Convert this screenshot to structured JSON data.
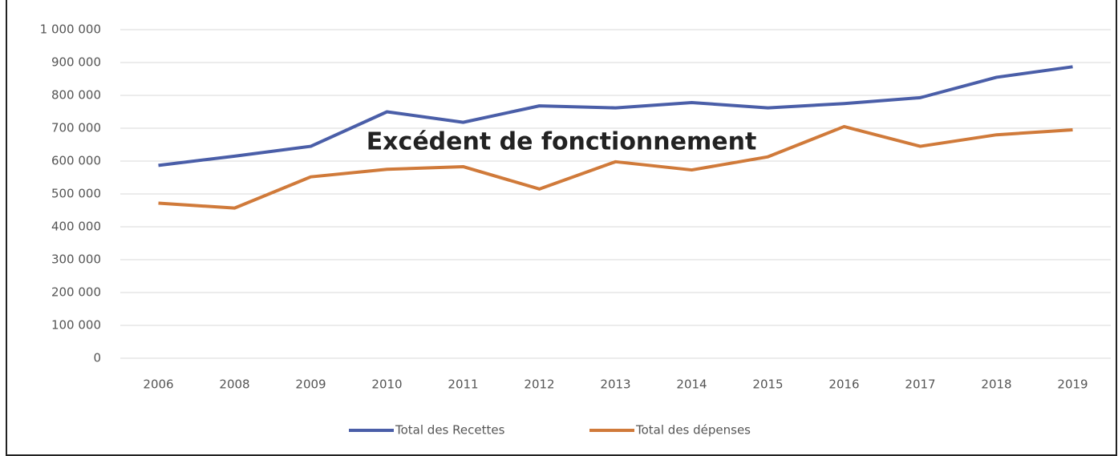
{
  "chart_data": {
    "type": "line",
    "annotation": "Excédent de fonctionnement",
    "categories": [
      "2006",
      "2008",
      "2009",
      "2010",
      "2011",
      "2012",
      "2013",
      "2014",
      "2015",
      "2016",
      "2017",
      "2018",
      "2019"
    ],
    "series": [
      {
        "name": "Total des Recettes",
        "color": "#4a5ea8",
        "values": [
          587000,
          615000,
          645000,
          750000,
          718000,
          768000,
          762000,
          778000,
          762000,
          775000,
          793000,
          855000,
          887000
        ]
      },
      {
        "name": "Total des dépenses",
        "color": "#d07a3a",
        "values": [
          472000,
          457000,
          552000,
          575000,
          583000,
          515000,
          598000,
          573000,
          613000,
          705000,
          645000,
          680000,
          695000
        ]
      }
    ],
    "ylim": [
      0,
      1000000
    ],
    "yticks": [
      0,
      {
        "value": 100000,
        "label": "100 000"
      },
      {
        "value": 200000,
        "label": "200 000"
      },
      {
        "value": 300000,
        "label": "300 000"
      },
      {
        "value": 400000,
        "label": "400 000"
      },
      {
        "value": 500000,
        "label": "500 000"
      },
      {
        "value": 600000,
        "label": "600 000"
      },
      {
        "value": 700000,
        "label": "700 000"
      },
      {
        "value": 800000,
        "label": "800 000"
      },
      {
        "value": 900000,
        "label": "900 000"
      },
      {
        "value": 1000000,
        "label": "1 000 000"
      }
    ],
    "grid": true,
    "legend": "bottom"
  }
}
